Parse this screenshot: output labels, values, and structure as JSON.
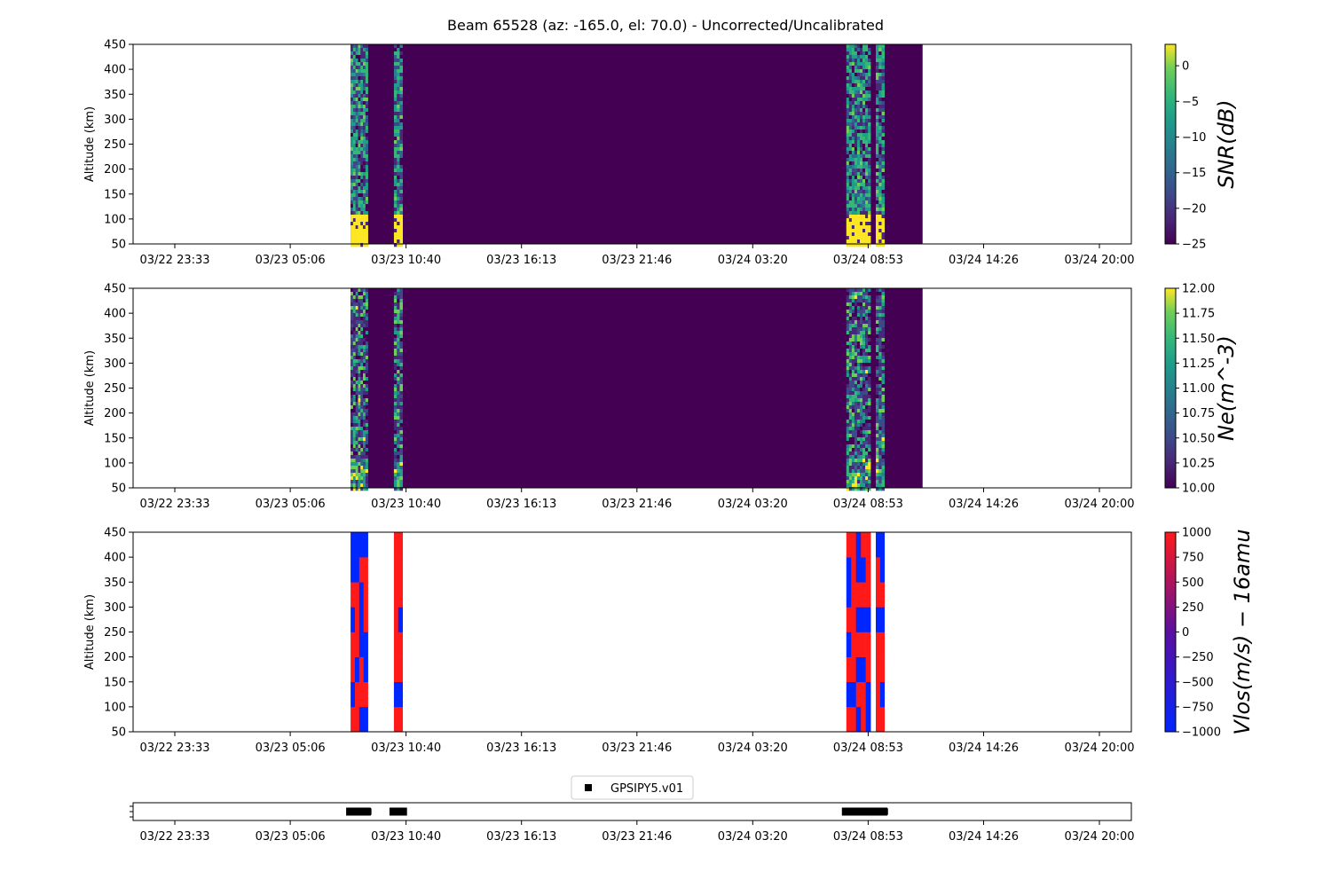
{
  "title": "Beam 65528 (az: -165.0, el: 70.0) - Uncorrected/Uncalibrated",
  "x_ticks": [
    "03/22 23:33",
    "03/23 05:06",
    "03/23 10:40",
    "03/23 16:13",
    "03/23 21:46",
    "03/24 03:20",
    "03/24 08:53",
    "03/24 14:26",
    "03/24 20:00"
  ],
  "colors": {
    "viridis_low": "#440154",
    "viridis_mid": "#21918c",
    "viridis_high": "#fde725",
    "vlos_low": "#0026ff",
    "vlos_high": "#ff1a1a"
  },
  "chart_data": [
    {
      "type": "heatmap",
      "name": "snr",
      "ylabel": "Altitude (km)",
      "ylim": [
        50,
        450
      ],
      "y_ticks": [
        50,
        100,
        150,
        200,
        250,
        300,
        350,
        400,
        450
      ],
      "colorbar_label": "SNR(dB)",
      "colorbar_range": [
        -25,
        3
      ],
      "colorbar_ticks": [
        0,
        -5,
        -10,
        -15,
        -20,
        -25
      ],
      "data_x_range": [
        "03/23 08:00",
        "03/24 11:30"
      ],
      "bursts": [
        {
          "start": "03/23 08:00",
          "end": "03/23 08:50"
        },
        {
          "start": "03/23 10:05",
          "end": "03/23 10:30"
        },
        {
          "start": "03/24 07:50",
          "end": "03/24 09:00"
        },
        {
          "start": "03/24 09:15",
          "end": "03/24 09:40"
        }
      ],
      "baseline_value": -25
    },
    {
      "type": "heatmap",
      "name": "ne",
      "ylabel": "Altitude (km)",
      "ylim": [
        50,
        450
      ],
      "y_ticks": [
        50,
        100,
        150,
        200,
        250,
        300,
        350,
        400,
        450
      ],
      "colorbar_label": "Ne(m^-3)",
      "colorbar_range": [
        10.0,
        12.0
      ],
      "colorbar_ticks": [
        "10.00",
        "10.25",
        "10.50",
        "10.75",
        "11.00",
        "11.25",
        "11.50",
        "11.75",
        "12.00"
      ],
      "data_x_range": [
        "03/23 08:00",
        "03/24 11:30"
      ],
      "baseline_value": 10.0
    },
    {
      "type": "heatmap",
      "name": "vlos",
      "ylabel": "Altitude (km)",
      "ylim": [
        50,
        450
      ],
      "y_ticks": [
        50,
        100,
        150,
        200,
        250,
        300,
        350,
        400,
        450
      ],
      "colorbar_label": "Vlos(m/s) − 16amu",
      "colorbar_range": [
        -1000,
        1000
      ],
      "colorbar_ticks": [
        1000,
        750,
        500,
        250,
        0,
        -250,
        -500,
        -750,
        -1000
      ]
    },
    {
      "type": "scatter",
      "name": "gps",
      "legend": "GPSIPY5.v01",
      "legend_position": "top-center",
      "points_x": [
        "03/23 08:00",
        "03/23 08:25",
        "03/23 08:45",
        "03/23 10:05",
        "03/23 10:30",
        "03/24 07:50",
        "03/24 08:10",
        "03/24 08:30",
        "03/24 09:15",
        "03/24 09:35"
      ]
    }
  ]
}
